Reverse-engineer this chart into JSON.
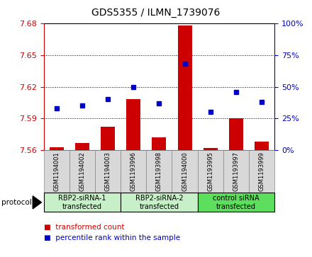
{
  "title": "GDS5355 / ILMN_1739076",
  "samples": [
    "GSM1194001",
    "GSM1194002",
    "GSM1194003",
    "GSM1193996",
    "GSM1193998",
    "GSM1194000",
    "GSM1193995",
    "GSM1193997",
    "GSM1193999"
  ],
  "bar_values": [
    7.563,
    7.567,
    7.582,
    7.608,
    7.572,
    7.678,
    7.562,
    7.59,
    7.568
  ],
  "bar_base": 7.56,
  "blue_values": [
    33,
    35,
    40,
    50,
    37,
    68,
    30,
    46,
    38
  ],
  "ylim": [
    7.56,
    7.68
  ],
  "y2lim": [
    0,
    100
  ],
  "yticks": [
    7.56,
    7.59,
    7.62,
    7.65,
    7.68
  ],
  "y2ticks": [
    0,
    25,
    50,
    75,
    100
  ],
  "bar_color": "#cc0000",
  "blue_color": "#0000cc",
  "bar_width": 0.55,
  "groups": [
    {
      "label": "RBP2-siRNA-1\ntransfected",
      "start": 0,
      "end": 3
    },
    {
      "label": "RBP2-siRNA-2\ntransfected",
      "start": 3,
      "end": 6
    },
    {
      "label": "control siRNA\ntransfected",
      "start": 6,
      "end": 9
    }
  ],
  "group_colors": [
    "#c8f0c8",
    "#c8f0c8",
    "#5dde5d"
  ],
  "sample_box_color": "#d8d8d8",
  "sample_box_edge": "#888888",
  "protocol_label": "protocol",
  "legend_items": [
    {
      "label": "transformed count",
      "color": "#cc0000"
    },
    {
      "label": "percentile rank within the sample",
      "color": "#0000cc"
    }
  ],
  "left_color": "#cc0000",
  "right_color": "#0000cc",
  "grid_color": "#000000",
  "title_fontsize": 10,
  "tick_fontsize": 8,
  "sample_fontsize": 6,
  "group_fontsize": 7,
  "legend_fontsize": 7.5
}
